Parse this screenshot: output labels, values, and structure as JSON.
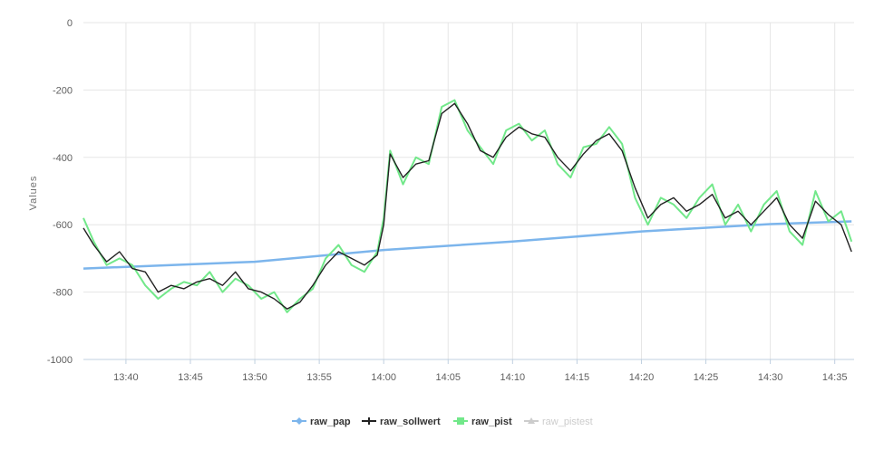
{
  "chart_data": {
    "type": "line",
    "ylabel": "Values",
    "ylim": [
      -1000,
      0
    ],
    "y_ticks": [
      "0",
      "-200",
      "-400",
      "-600",
      "-800",
      "-1000"
    ],
    "y_tick_values": [
      0,
      -200,
      -400,
      -600,
      -800,
      -1000
    ],
    "x_ticks": [
      "13:40",
      "13:45",
      "13:50",
      "13:55",
      "14:00",
      "14:05",
      "14:10",
      "14:15",
      "14:20",
      "14:25",
      "14:30",
      "14:35"
    ],
    "x_tick_minutes": [
      820,
      825,
      830,
      835,
      840,
      845,
      850,
      855,
      860,
      865,
      870,
      875
    ],
    "x_range": [
      816.7,
      876.5
    ],
    "grid": true,
    "legend_position": "bottom-center",
    "series": [
      {
        "name": "raw_pap",
        "color": "#7cb5ec",
        "marker": "diamond",
        "visible": true,
        "points": [
          [
            816.7,
            -730
          ],
          [
            830,
            -710
          ],
          [
            840,
            -675
          ],
          [
            850,
            -650
          ],
          [
            860,
            -620
          ],
          [
            870,
            -598
          ],
          [
            876.3,
            -590
          ]
        ]
      },
      {
        "name": "raw_sollwert",
        "color": "#222222",
        "marker": "plus",
        "visible": true,
        "points": [
          [
            816.7,
            -610
          ],
          [
            817.5,
            -660
          ],
          [
            818.5,
            -710
          ],
          [
            819.5,
            -680
          ],
          [
            820.5,
            -730
          ],
          [
            821.5,
            -740
          ],
          [
            822.5,
            -800
          ],
          [
            823.5,
            -780
          ],
          [
            824.5,
            -790
          ],
          [
            825.5,
            -770
          ],
          [
            826.5,
            -760
          ],
          [
            827.5,
            -780
          ],
          [
            828.5,
            -740
          ],
          [
            829.5,
            -790
          ],
          [
            830.5,
            -800
          ],
          [
            831.5,
            -820
          ],
          [
            832.5,
            -850
          ],
          [
            833.5,
            -830
          ],
          [
            834.5,
            -780
          ],
          [
            835.5,
            -720
          ],
          [
            836.5,
            -680
          ],
          [
            837.5,
            -700
          ],
          [
            838.5,
            -720
          ],
          [
            839.5,
            -690
          ],
          [
            840,
            -600
          ],
          [
            840.5,
            -390
          ],
          [
            841.5,
            -460
          ],
          [
            842.5,
            -420
          ],
          [
            843.5,
            -410
          ],
          [
            844.5,
            -270
          ],
          [
            845.5,
            -240
          ],
          [
            846.5,
            -300
          ],
          [
            847.5,
            -380
          ],
          [
            848.5,
            -400
          ],
          [
            849.5,
            -340
          ],
          [
            850.5,
            -310
          ],
          [
            851.5,
            -330
          ],
          [
            852.5,
            -340
          ],
          [
            853.5,
            -400
          ],
          [
            854.5,
            -440
          ],
          [
            855.5,
            -390
          ],
          [
            856.5,
            -350
          ],
          [
            857.5,
            -330
          ],
          [
            858.5,
            -380
          ],
          [
            859.5,
            -490
          ],
          [
            860.5,
            -580
          ],
          [
            861.5,
            -540
          ],
          [
            862.5,
            -520
          ],
          [
            863.5,
            -560
          ],
          [
            864.5,
            -540
          ],
          [
            865.5,
            -510
          ],
          [
            866.5,
            -580
          ],
          [
            867.5,
            -560
          ],
          [
            868.5,
            -600
          ],
          [
            869.5,
            -560
          ],
          [
            870.5,
            -520
          ],
          [
            871.5,
            -600
          ],
          [
            872.5,
            -640
          ],
          [
            873.5,
            -530
          ],
          [
            874.5,
            -570
          ],
          [
            875.5,
            -600
          ],
          [
            876.3,
            -680
          ]
        ]
      },
      {
        "name": "raw_pist",
        "color": "#72e88a",
        "marker": "square",
        "visible": true,
        "points": [
          [
            816.7,
            -580
          ],
          [
            817.5,
            -650
          ],
          [
            818.5,
            -720
          ],
          [
            819.5,
            -700
          ],
          [
            820.5,
            -720
          ],
          [
            821.5,
            -780
          ],
          [
            822.5,
            -820
          ],
          [
            823.5,
            -790
          ],
          [
            824.5,
            -770
          ],
          [
            825.5,
            -780
          ],
          [
            826.5,
            -740
          ],
          [
            827.5,
            -800
          ],
          [
            828.5,
            -760
          ],
          [
            829.5,
            -780
          ],
          [
            830.5,
            -820
          ],
          [
            831.5,
            -800
          ],
          [
            832.5,
            -860
          ],
          [
            833.5,
            -820
          ],
          [
            834.5,
            -790
          ],
          [
            835.5,
            -700
          ],
          [
            836.5,
            -660
          ],
          [
            837.5,
            -720
          ],
          [
            838.5,
            -740
          ],
          [
            839.5,
            -680
          ],
          [
            840,
            -580
          ],
          [
            840.5,
            -380
          ],
          [
            841.5,
            -480
          ],
          [
            842.5,
            -400
          ],
          [
            843.5,
            -420
          ],
          [
            844.5,
            -250
          ],
          [
            845.5,
            -230
          ],
          [
            846.5,
            -320
          ],
          [
            847.5,
            -370
          ],
          [
            848.5,
            -420
          ],
          [
            849.5,
            -320
          ],
          [
            850.5,
            -300
          ],
          [
            851.5,
            -350
          ],
          [
            852.5,
            -320
          ],
          [
            853.5,
            -420
          ],
          [
            854.5,
            -460
          ],
          [
            855.5,
            -370
          ],
          [
            856.5,
            -360
          ],
          [
            857.5,
            -310
          ],
          [
            858.5,
            -360
          ],
          [
            859.5,
            -520
          ],
          [
            860.5,
            -600
          ],
          [
            861.5,
            -520
          ],
          [
            862.5,
            -540
          ],
          [
            863.5,
            -580
          ],
          [
            864.5,
            -520
          ],
          [
            865.5,
            -480
          ],
          [
            866.5,
            -600
          ],
          [
            867.5,
            -540
          ],
          [
            868.5,
            -620
          ],
          [
            869.5,
            -540
          ],
          [
            870.5,
            -500
          ],
          [
            871.5,
            -620
          ],
          [
            872.5,
            -660
          ],
          [
            873.5,
            -500
          ],
          [
            874.5,
            -590
          ],
          [
            875.5,
            -560
          ],
          [
            876.3,
            -650
          ]
        ]
      },
      {
        "name": "raw_pistest",
        "color": "#cccccc",
        "marker": "triangle",
        "visible": false,
        "points": []
      }
    ]
  }
}
